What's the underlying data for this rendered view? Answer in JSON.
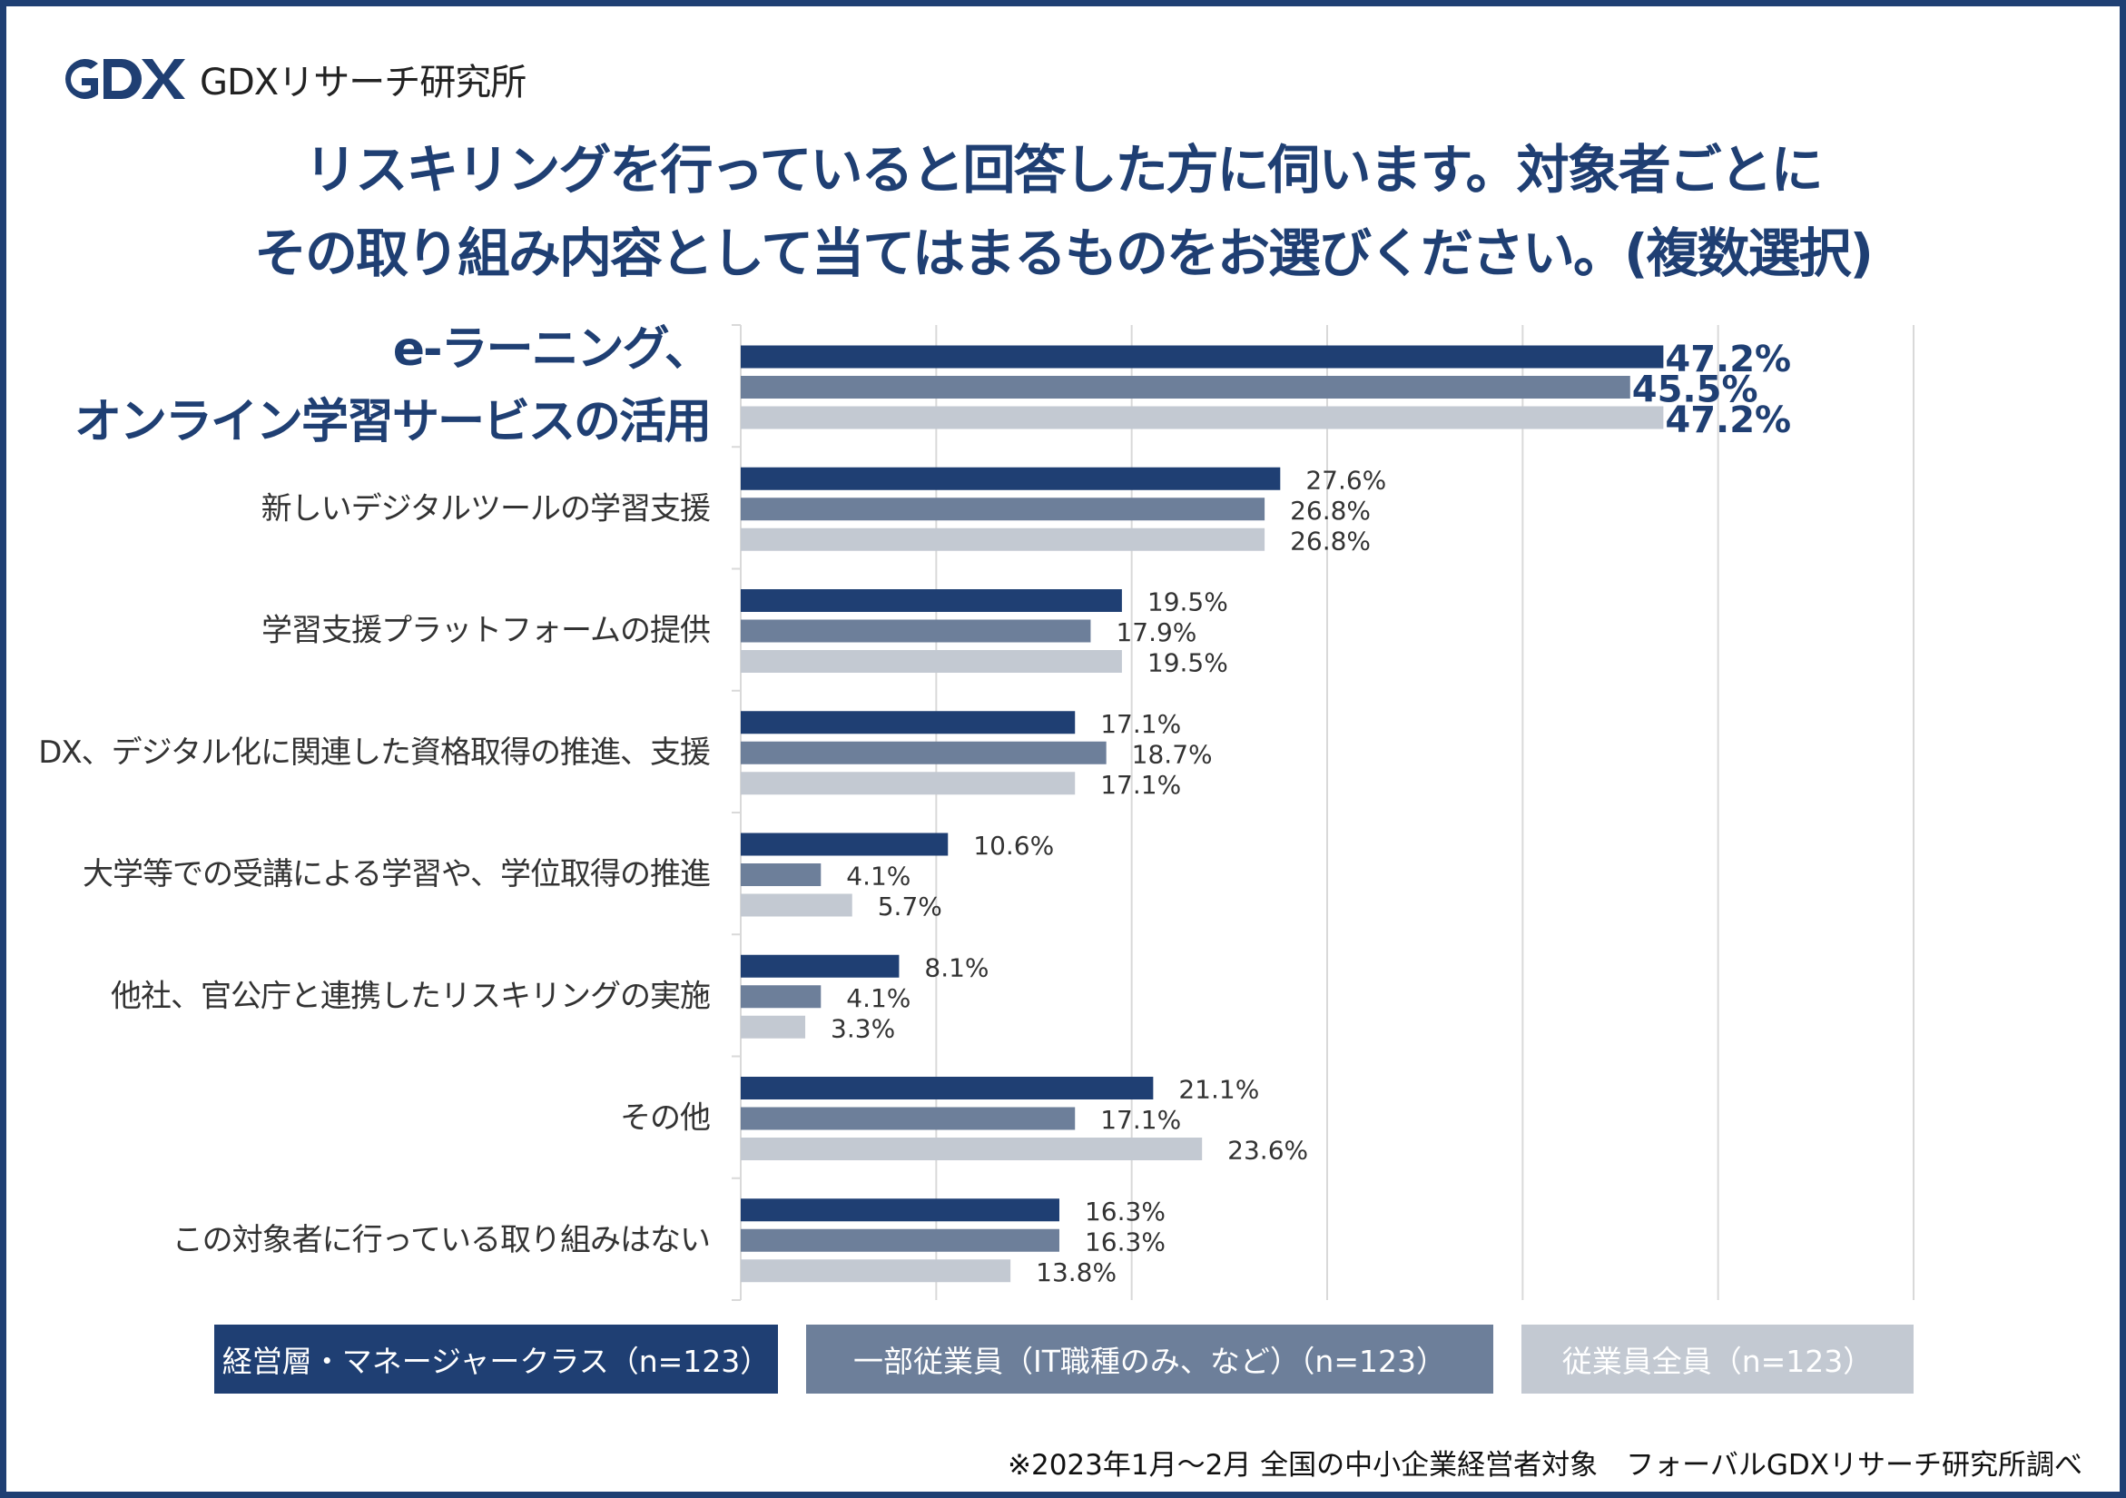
{
  "logo": {
    "text": "GDXリサーチ研究所"
  },
  "chart_data": {
    "type": "bar",
    "orientation": "horizontal",
    "title": "リスキリングを行っていると回答した方に伺います。対象者ごとに",
    "subtitle": "その取り組み内容として当てはまるものをお選びください。(複数選択)",
    "categories": [
      "e-ラーニング、\nオンライン学習サービスの活用",
      "新しいデジタルツールの学習支援",
      "学習支援プラットフォームの提供",
      "DX、デジタル化に関連した資格取得の推進、支援",
      "大学等での受講による学習や、学位取得の推進",
      "他社、官公庁と連携したリスキリングの実施",
      "その他",
      "この対象者に行っている取り組みはない"
    ],
    "series": [
      {
        "name": "経営層・マネージャークラス（n=123）",
        "color": "#1f3f73",
        "values": [
          47.2,
          27.6,
          19.5,
          17.1,
          10.6,
          8.1,
          21.1,
          16.3
        ],
        "labels": [
          "47.2%",
          "27.6%",
          "19.5%",
          "17.1%",
          "10.6%",
          "8.1%",
          "21.1%",
          "16.3%"
        ]
      },
      {
        "name": "一部従業員（IT職種のみ、など）（n=123）",
        "color": "#6d7f9a",
        "values": [
          45.5,
          26.8,
          17.9,
          18.7,
          4.1,
          4.1,
          17.1,
          16.3
        ],
        "labels": [
          "45.5%",
          "26.8%",
          "17.9%",
          "18.7%",
          "4.1%",
          "4.1%",
          "17.1%",
          "16.3%"
        ]
      },
      {
        "name": "従業員全員（n=123）",
        "color": "#c3c9d2",
        "values": [
          47.2,
          26.8,
          19.5,
          17.1,
          5.7,
          3.3,
          23.6,
          13.8
        ],
        "labels": [
          "47.2%",
          "26.8%",
          "19.5%",
          "17.1%",
          "5.7%",
          "3.3%",
          "23.6%",
          "13.8%"
        ]
      }
    ],
    "xlim": [
      0,
      60
    ],
    "grid": true,
    "legend": "bottom"
  },
  "footnote": "※2023年1月～2月 全国の中小企業経営者対象　フォーバルGDXリサーチ研究所調べ"
}
